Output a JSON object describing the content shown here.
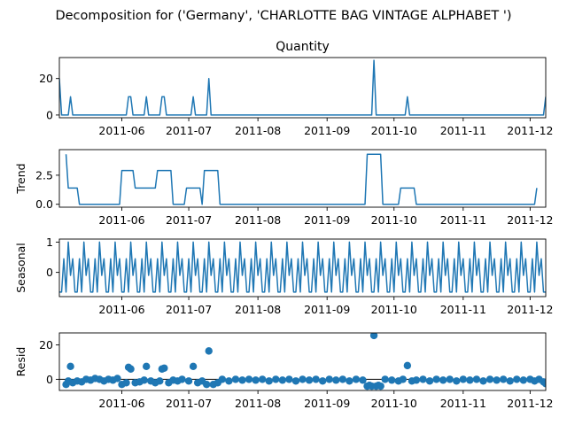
{
  "suptitle": "Decomposition for ('Germany', 'CHARLOTTE BAG VINTAGE ALPHABET ')",
  "colors": {
    "series": "#1f77b4",
    "axis": "#000000",
    "background": "#ffffff"
  },
  "chart_data": [
    {
      "type": "line",
      "panel": "observed",
      "title": "Quantity",
      "ylabel": "",
      "x_range": [
        "2011-05-04",
        "2011-12-08"
      ],
      "ylim": [
        -1.5,
        31.5
      ],
      "yticks": [
        0,
        20
      ],
      "ytick_labels": [
        "0",
        "20"
      ],
      "xticks": [
        "2011-06-01",
        "2011-07-01",
        "2011-08-01",
        "2011-09-01",
        "2011-10-01",
        "2011-11-01",
        "2011-12-01"
      ],
      "xtick_labels": [
        "2011-06",
        "2011-07",
        "2011-08",
        "2011-09",
        "2011-10",
        "2011-11",
        "2011-12"
      ],
      "grid": false,
      "points": [
        [
          "2011-05-04",
          20
        ],
        [
          "2011-05-05",
          0
        ],
        [
          "2011-05-08",
          0
        ],
        [
          "2011-05-09",
          10
        ],
        [
          "2011-05-10",
          0
        ],
        [
          "2011-06-03",
          0
        ],
        [
          "2011-06-04",
          10
        ],
        [
          "2011-06-05",
          10
        ],
        [
          "2011-06-06",
          0
        ],
        [
          "2011-06-11",
          0
        ],
        [
          "2011-06-12",
          10
        ],
        [
          "2011-06-13",
          0
        ],
        [
          "2011-06-18",
          0
        ],
        [
          "2011-06-19",
          10
        ],
        [
          "2011-06-20",
          10
        ],
        [
          "2011-06-21",
          0
        ],
        [
          "2011-07-02",
          0
        ],
        [
          "2011-07-03",
          10
        ],
        [
          "2011-07-04",
          0
        ],
        [
          "2011-07-09",
          0
        ],
        [
          "2011-07-10",
          20
        ],
        [
          "2011-07-11",
          0
        ],
        [
          "2011-09-21",
          0
        ],
        [
          "2011-09-22",
          30
        ],
        [
          "2011-09-23",
          0
        ],
        [
          "2011-10-06",
          0
        ],
        [
          "2011-10-07",
          10
        ],
        [
          "2011-10-08",
          0
        ],
        [
          "2011-12-07",
          0
        ],
        [
          "2011-12-08",
          10
        ]
      ]
    },
    {
      "type": "line",
      "panel": "trend",
      "title": "",
      "ylabel": "Trend",
      "x_range": [
        "2011-05-04",
        "2011-12-08"
      ],
      "ylim": [
        -0.25,
        4.7
      ],
      "yticks": [
        0.0,
        2.5
      ],
      "ytick_labels": [
        "0.0",
        "2.5"
      ],
      "xticks": [
        "2011-06-01",
        "2011-07-01",
        "2011-08-01",
        "2011-09-01",
        "2011-10-01",
        "2011-11-01",
        "2011-12-01"
      ],
      "xtick_labels": [
        "2011-06",
        "2011-07",
        "2011-08",
        "2011-09",
        "2011-10",
        "2011-11",
        "2011-12"
      ],
      "grid": false,
      "points": [
        [
          "2011-05-07",
          4.3
        ],
        [
          "2011-05-08",
          1.4
        ],
        [
          "2011-05-12",
          1.4
        ],
        [
          "2011-05-13",
          0
        ],
        [
          "2011-05-31",
          0
        ],
        [
          "2011-06-01",
          2.9
        ],
        [
          "2011-06-06",
          2.9
        ],
        [
          "2011-06-07",
          1.4
        ],
        [
          "2011-06-16",
          1.4
        ],
        [
          "2011-06-17",
          2.9
        ],
        [
          "2011-06-23",
          2.9
        ],
        [
          "2011-06-24",
          0
        ],
        [
          "2011-06-29",
          0
        ],
        [
          "2011-06-30",
          1.4
        ],
        [
          "2011-07-06",
          1.4
        ],
        [
          "2011-07-07",
          0
        ],
        [
          "2011-07-08",
          2.9
        ],
        [
          "2011-07-14",
          2.9
        ],
        [
          "2011-07-15",
          0
        ],
        [
          "2011-09-18",
          0
        ],
        [
          "2011-09-19",
          4.3
        ],
        [
          "2011-09-25",
          4.3
        ],
        [
          "2011-09-26",
          0
        ],
        [
          "2011-10-03",
          0
        ],
        [
          "2011-10-04",
          1.4
        ],
        [
          "2011-10-10",
          1.4
        ],
        [
          "2011-10-11",
          0
        ],
        [
          "2011-12-03",
          0
        ],
        [
          "2011-12-04",
          1.4
        ]
      ]
    },
    {
      "type": "line",
      "panel": "seasonal",
      "title": "",
      "ylabel": "Seasonal",
      "x_range": [
        "2011-05-04",
        "2011-12-08"
      ],
      "ylim": [
        -0.8,
        1.1
      ],
      "yticks": [
        0,
        1
      ],
      "ytick_labels": [
        "0",
        "1"
      ],
      "xticks": [
        "2011-06-01",
        "2011-07-01",
        "2011-08-01",
        "2011-09-01",
        "2011-10-01",
        "2011-11-01",
        "2011-12-01"
      ],
      "xtick_labels": [
        "2011-06",
        "2011-07",
        "2011-08",
        "2011-09",
        "2011-10",
        "2011-11",
        "2011-12"
      ],
      "grid": false,
      "period_days": 7,
      "start": "2011-05-04",
      "end": "2011-12-08",
      "weekly_pattern": [
        -0.65,
        -0.65,
        0.45,
        -0.65,
        1.0,
        -0.1,
        0.45
      ]
    },
    {
      "type": "scatter",
      "panel": "resid",
      "title": "",
      "ylabel": "Resid",
      "x_range": [
        "2011-05-04",
        "2011-12-08"
      ],
      "ylim": [
        -6.5,
        27
      ],
      "yticks": [
        0,
        20
      ],
      "ytick_labels": [
        "0",
        "20"
      ],
      "xticks": [
        "2011-06-01",
        "2011-07-01",
        "2011-08-01",
        "2011-09-01",
        "2011-10-01",
        "2011-11-01",
        "2011-12-01"
      ],
      "xtick_labels": [
        "2011-06",
        "2011-07",
        "2011-08",
        "2011-09",
        "2011-10",
        "2011-11",
        "2011-12"
      ],
      "grid": false,
      "baseline": 0,
      "points": [
        [
          "2011-05-07",
          -3
        ],
        [
          "2011-05-08",
          -1
        ],
        [
          "2011-05-09",
          7.5
        ],
        [
          "2011-05-10",
          -2
        ],
        [
          "2011-05-12",
          -1
        ],
        [
          "2011-05-14",
          -1.5
        ],
        [
          "2011-05-16",
          0
        ],
        [
          "2011-05-18",
          -0.5
        ],
        [
          "2011-05-20",
          0.5
        ],
        [
          "2011-05-22",
          0
        ],
        [
          "2011-05-24",
          -1
        ],
        [
          "2011-05-26",
          0
        ],
        [
          "2011-05-28",
          -0.5
        ],
        [
          "2011-05-30",
          0.5
        ],
        [
          "2011-06-01",
          -3
        ],
        [
          "2011-06-03",
          -2
        ],
        [
          "2011-06-04",
          7
        ],
        [
          "2011-06-05",
          6
        ],
        [
          "2011-06-07",
          -2
        ],
        [
          "2011-06-09",
          -1.5
        ],
        [
          "2011-06-11",
          -0.5
        ],
        [
          "2011-06-12",
          7.5
        ],
        [
          "2011-06-14",
          -1
        ],
        [
          "2011-06-16",
          -2
        ],
        [
          "2011-06-18",
          -1
        ],
        [
          "2011-06-19",
          6
        ],
        [
          "2011-06-20",
          6.5
        ],
        [
          "2011-06-22",
          -2
        ],
        [
          "2011-06-24",
          -0.5
        ],
        [
          "2011-06-26",
          -1
        ],
        [
          "2011-06-28",
          0
        ],
        [
          "2011-07-01",
          -1
        ],
        [
          "2011-07-03",
          7.5
        ],
        [
          "2011-07-05",
          -2
        ],
        [
          "2011-07-07",
          -1
        ],
        [
          "2011-07-09",
          -3
        ],
        [
          "2011-07-10",
          16.5
        ],
        [
          "2011-07-12",
          -3
        ],
        [
          "2011-07-14",
          -2
        ],
        [
          "2011-07-16",
          0
        ],
        [
          "2011-07-19",
          -1
        ],
        [
          "2011-07-22",
          0
        ],
        [
          "2011-07-25",
          -0.5
        ],
        [
          "2011-07-28",
          0
        ],
        [
          "2011-07-31",
          -0.5
        ],
        [
          "2011-08-03",
          0
        ],
        [
          "2011-08-06",
          -1
        ],
        [
          "2011-08-09",
          0
        ],
        [
          "2011-08-12",
          -0.5
        ],
        [
          "2011-08-15",
          0
        ],
        [
          "2011-08-18",
          -1
        ],
        [
          "2011-08-21",
          0
        ],
        [
          "2011-08-24",
          -0.5
        ],
        [
          "2011-08-27",
          0
        ],
        [
          "2011-08-30",
          -1
        ],
        [
          "2011-09-02",
          0
        ],
        [
          "2011-09-05",
          -0.5
        ],
        [
          "2011-09-08",
          0
        ],
        [
          "2011-09-11",
          -1
        ],
        [
          "2011-09-14",
          0
        ],
        [
          "2011-09-17",
          -0.5
        ],
        [
          "2011-09-19",
          -4
        ],
        [
          "2011-09-20",
          -3.5
        ],
        [
          "2011-09-21",
          -4
        ],
        [
          "2011-09-22",
          25.5
        ],
        [
          "2011-09-23",
          -4
        ],
        [
          "2011-09-24",
          -3.5
        ],
        [
          "2011-09-25",
          -4
        ],
        [
          "2011-09-27",
          0
        ],
        [
          "2011-09-30",
          -0.5
        ],
        [
          "2011-10-03",
          -1
        ],
        [
          "2011-10-05",
          0
        ],
        [
          "2011-10-07",
          8
        ],
        [
          "2011-10-09",
          -1
        ],
        [
          "2011-10-11",
          -0.5
        ],
        [
          "2011-10-14",
          0
        ],
        [
          "2011-10-17",
          -1
        ],
        [
          "2011-10-20",
          0
        ],
        [
          "2011-10-23",
          -0.5
        ],
        [
          "2011-10-26",
          0
        ],
        [
          "2011-10-29",
          -1
        ],
        [
          "2011-11-01",
          0
        ],
        [
          "2011-11-04",
          -0.5
        ],
        [
          "2011-11-07",
          0
        ],
        [
          "2011-11-10",
          -1
        ],
        [
          "2011-11-13",
          0
        ],
        [
          "2011-11-16",
          -0.5
        ],
        [
          "2011-11-19",
          0
        ],
        [
          "2011-11-22",
          -1
        ],
        [
          "2011-11-25",
          0
        ],
        [
          "2011-11-28",
          -0.5
        ],
        [
          "2011-12-01",
          0
        ],
        [
          "2011-12-03",
          -1
        ],
        [
          "2011-12-05",
          0
        ],
        [
          "2011-12-07",
          -1.5
        ],
        [
          "2011-12-08",
          -2.5
        ]
      ]
    }
  ]
}
